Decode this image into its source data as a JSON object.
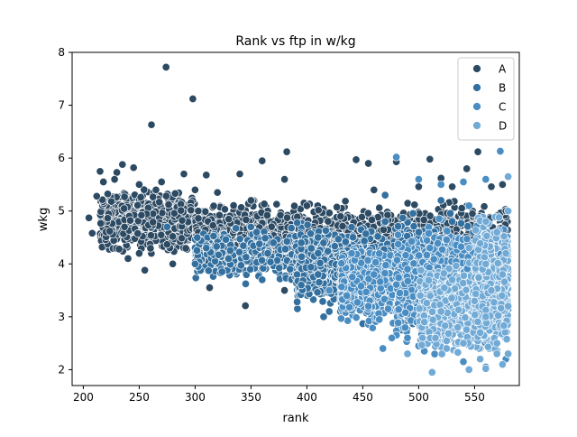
{
  "chart_data": {
    "type": "scatter",
    "title": "Rank vs ftp in w/kg",
    "xlabel": "rank",
    "ylabel": "wkg",
    "xlim": [
      190,
      590
    ],
    "ylim": [
      1.7,
      8.0
    ],
    "xticks": [
      200,
      250,
      300,
      350,
      400,
      450,
      500,
      550
    ],
    "yticks": [
      2,
      3,
      4,
      5,
      6,
      7,
      8
    ],
    "grid": false,
    "legend": {
      "position": "top-right",
      "entries": [
        "A",
        "B",
        "C",
        "D"
      ]
    },
    "series": [
      {
        "name": "A",
        "color": "#2d4a63",
        "points": [
          [
            274,
            7.72
          ],
          [
            298,
            7.12
          ],
          [
            261,
            6.63
          ],
          [
            382,
            6.12
          ],
          [
            360,
            5.95
          ],
          [
            444,
            5.97
          ],
          [
            510,
            5.98
          ],
          [
            553,
            6.12
          ],
          [
            235,
            5.88
          ],
          [
            215,
            5.75
          ],
          [
            230,
            5.73
          ],
          [
            245,
            5.82
          ],
          [
            290,
            5.7
          ],
          [
            310,
            5.68
          ],
          [
            340,
            5.7
          ],
          [
            380,
            5.6
          ],
          [
            455,
            5.9
          ],
          [
            480,
            5.93
          ],
          [
            520,
            5.62
          ],
          [
            543,
            5.8
          ],
          [
            228,
            5.6
          ],
          [
            250,
            5.5
          ],
          [
            270,
            5.55
          ],
          [
            218,
            5.55
          ],
          [
            205,
            4.87
          ],
          [
            208,
            4.58
          ],
          [
            212,
            5.28
          ],
          [
            240,
            4.1
          ],
          [
            255,
            3.88
          ],
          [
            232,
            4.28
          ],
          [
            265,
            5.4
          ],
          [
            300,
            5.4
          ],
          [
            320,
            5.35
          ],
          [
            350,
            5.2
          ],
          [
            400,
            5.1
          ],
          [
            460,
            5.4
          ],
          [
            500,
            5.46
          ],
          [
            530,
            5.46
          ],
          [
            565,
            5.46
          ],
          [
            575,
            5.5
          ],
          [
            578,
            5.0
          ],
          [
            345,
            3.21
          ],
          [
            313,
            3.55
          ],
          [
            380,
            3.5
          ],
          [
            250,
            4.2
          ],
          [
            280,
            4.0
          ],
          [
            320,
            3.9
          ]
        ]
      },
      {
        "name": "B",
        "color": "#33709f",
        "points": [
          [
            300,
            4.0
          ],
          [
            330,
            4.1
          ],
          [
            360,
            3.7
          ],
          [
            370,
            4.4
          ],
          [
            395,
            3.6
          ],
          [
            410,
            3.8
          ],
          [
            420,
            3.1
          ],
          [
            440,
            3.9
          ],
          [
            450,
            2.87
          ],
          [
            470,
            3.3
          ],
          [
            485,
            2.75
          ],
          [
            505,
            3.2
          ],
          [
            500,
            4.6
          ],
          [
            520,
            5.2
          ],
          [
            540,
            4.0
          ],
          [
            560,
            3.6
          ],
          [
            575,
            3.0
          ],
          [
            415,
            3.0
          ],
          [
            430,
            3.1
          ],
          [
            450,
            4.1
          ],
          [
            395,
            4.4
          ],
          [
            355,
            4.6
          ],
          [
            365,
            4.2
          ],
          [
            385,
            3.9
          ],
          [
            310,
            4.3
          ],
          [
            275,
            4.7
          ],
          [
            410,
            4.5
          ],
          [
            470,
            5.3
          ],
          [
            530,
            4.8
          ],
          [
            555,
            4.2
          ],
          [
            578,
            3.8
          ],
          [
            470,
            4.8
          ]
        ]
      },
      {
        "name": "C",
        "color": "#4a8dc2",
        "points": [
          [
            480,
            6.02
          ],
          [
            500,
            5.6
          ],
          [
            520,
            5.5
          ],
          [
            540,
            5.55
          ],
          [
            560,
            5.6
          ],
          [
            548,
            2.7
          ],
          [
            535,
            2.9
          ],
          [
            555,
            2.4
          ],
          [
            520,
            2.52
          ],
          [
            505,
            2.35
          ],
          [
            490,
            2.6
          ],
          [
            468,
            2.4
          ],
          [
            476,
            2.6
          ],
          [
            512,
            3.0
          ],
          [
            530,
            3.4
          ],
          [
            550,
            3.6
          ],
          [
            570,
            2.8
          ],
          [
            578,
            2.2
          ],
          [
            460,
            3.8
          ],
          [
            490,
            3.9
          ],
          [
            440,
            4.2
          ],
          [
            510,
            4.3
          ],
          [
            560,
            4.6
          ],
          [
            545,
            5.1
          ],
          [
            565,
            3.2
          ],
          [
            525,
            2.7
          ],
          [
            500,
            2.45
          ],
          [
            540,
            2.15
          ],
          [
            560,
            2.05
          ],
          [
            573,
            6.13
          ],
          [
            455,
            3.2
          ],
          [
            420,
            3.5
          ]
        ]
      },
      {
        "name": "D",
        "color": "#72aad6",
        "points": [
          [
            512,
            1.95
          ],
          [
            545,
            2.0
          ],
          [
            560,
            2.02
          ],
          [
            575,
            2.1
          ],
          [
            580,
            2.3
          ],
          [
            570,
            2.5
          ],
          [
            555,
            2.7
          ],
          [
            540,
            2.5
          ],
          [
            525,
            2.4
          ],
          [
            535,
            2.8
          ],
          [
            560,
            3.0
          ],
          [
            580,
            3.2
          ],
          [
            565,
            3.5
          ],
          [
            550,
            3.3
          ],
          [
            520,
            3.1
          ],
          [
            505,
            2.9
          ],
          [
            575,
            3.8
          ],
          [
            578,
            4.2
          ],
          [
            570,
            4.6
          ],
          [
            580,
            5.0
          ],
          [
            580,
            5.65
          ],
          [
            560,
            4.0
          ],
          [
            545,
            4.3
          ],
          [
            530,
            3.7
          ],
          [
            490,
            2.3
          ],
          [
            515,
            2.6
          ],
          [
            570,
            2.3
          ],
          [
            555,
            2.2
          ]
        ]
      }
    ],
    "dense_regions": [
      {
        "series": "A",
        "x": [
          215,
          300
        ],
        "y": [
          4.1,
          5.5
        ],
        "n": 700
      },
      {
        "series": "A",
        "x": [
          300,
          400
        ],
        "y": [
          3.7,
          5.3
        ],
        "n": 900
      },
      {
        "series": "A",
        "x": [
          400,
          500
        ],
        "y": [
          3.6,
          5.3
        ],
        "n": 500
      },
      {
        "series": "A",
        "x": [
          500,
          580
        ],
        "y": [
          3.8,
          5.4
        ],
        "n": 250
      },
      {
        "series": "B",
        "x": [
          300,
          400
        ],
        "y": [
          3.5,
          4.8
        ],
        "n": 300
      },
      {
        "series": "B",
        "x": [
          390,
          500
        ],
        "y": [
          3.0,
          4.9
        ],
        "n": 1100
      },
      {
        "series": "B",
        "x": [
          480,
          580
        ],
        "y": [
          2.4,
          5.0
        ],
        "n": 600
      },
      {
        "series": "C",
        "x": [
          430,
          500
        ],
        "y": [
          2.7,
          4.4
        ],
        "n": 600
      },
      {
        "series": "C",
        "x": [
          480,
          580
        ],
        "y": [
          2.2,
          5.0
        ],
        "n": 1100
      },
      {
        "series": "D",
        "x": [
          500,
          580
        ],
        "y": [
          2.1,
          4.2
        ],
        "n": 500
      },
      {
        "series": "D",
        "x": [
          550,
          580
        ],
        "y": [
          2.2,
          5.2
        ],
        "n": 350
      }
    ]
  }
}
